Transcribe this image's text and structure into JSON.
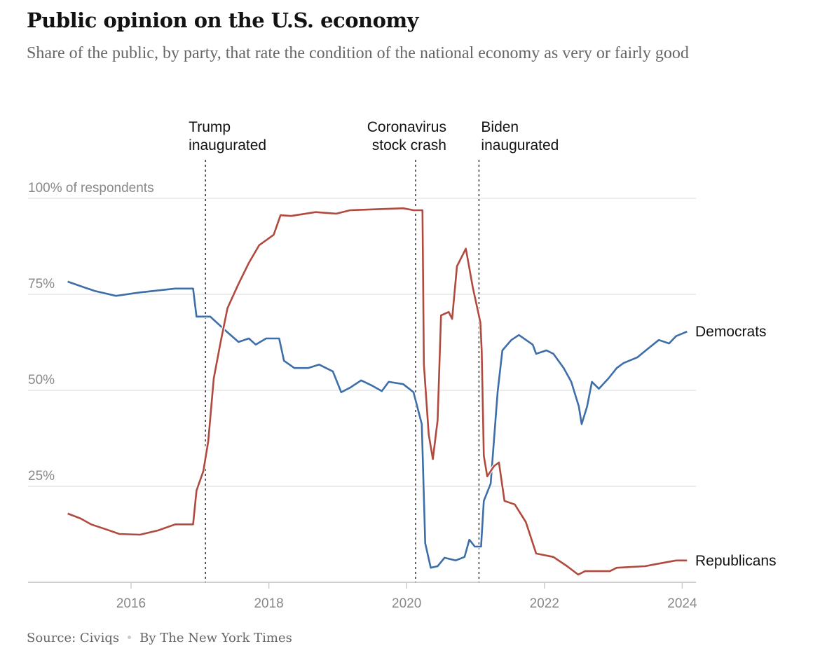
{
  "header": {
    "title": "Public opinion on the U.S. economy",
    "subtitle": "Share of the public, by party, that rate the condition of the national economy as very or fairly good"
  },
  "footer": {
    "source": "Source: Civiqs",
    "byline": "By The New York Times"
  },
  "chart_data": {
    "type": "line",
    "title": "Public opinion on the U.S. economy",
    "ylabel": "100% of respondents",
    "xlim": [
      2015,
      2024.2
    ],
    "ylim": [
      0,
      100
    ],
    "grid": true,
    "x_ticks": [
      {
        "value": 2016,
        "label": "2016"
      },
      {
        "value": 2018,
        "label": "2018"
      },
      {
        "value": 2020,
        "label": "2020"
      },
      {
        "value": 2022,
        "label": "2022"
      },
      {
        "value": 2024,
        "label": "2024"
      }
    ],
    "y_ticks": [
      {
        "value": 100,
        "label": "100% of respondents"
      },
      {
        "value": 75,
        "label": "75%"
      },
      {
        "value": 50,
        "label": "50%"
      },
      {
        "value": 25,
        "label": "25%"
      },
      {
        "value": 0,
        "label": ""
      }
    ],
    "events": [
      {
        "x": 2017.08,
        "label": [
          "Trump",
          "inaugurated"
        ]
      },
      {
        "x": 2020.13,
        "label": [
          "Coronavirus",
          "stock crash"
        ]
      },
      {
        "x": 2021.05,
        "label": [
          "Biden",
          "inaugurated"
        ]
      }
    ],
    "series": [
      {
        "name": "Democrats",
        "color": "#3d6ea8",
        "points": [
          [
            2015.08,
            78.3
          ],
          [
            2015.32,
            76.8
          ],
          [
            2015.47,
            75.9
          ],
          [
            2015.78,
            74.6
          ],
          [
            2016.13,
            75.5
          ],
          [
            2016.64,
            76.5
          ],
          [
            2016.9,
            76.5
          ],
          [
            2016.95,
            69.2
          ],
          [
            2017.15,
            69.2
          ],
          [
            2017.35,
            65.9
          ],
          [
            2017.56,
            62.6
          ],
          [
            2017.71,
            63.5
          ],
          [
            2017.81,
            61.9
          ],
          [
            2017.96,
            63.5
          ],
          [
            2018.15,
            63.5
          ],
          [
            2018.22,
            57.7
          ],
          [
            2018.37,
            55.8
          ],
          [
            2018.57,
            55.8
          ],
          [
            2018.73,
            56.7
          ],
          [
            2018.93,
            54.9
          ],
          [
            2019.05,
            49.5
          ],
          [
            2019.18,
            50.7
          ],
          [
            2019.34,
            52.6
          ],
          [
            2019.49,
            51.3
          ],
          [
            2019.64,
            49.8
          ],
          [
            2019.74,
            52.2
          ],
          [
            2019.95,
            51.6
          ],
          [
            2020.1,
            49.5
          ],
          [
            2020.22,
            41.2
          ],
          [
            2020.27,
            10.2
          ],
          [
            2020.35,
            3.8
          ],
          [
            2020.45,
            4.2
          ],
          [
            2020.55,
            6.4
          ],
          [
            2020.71,
            5.7
          ],
          [
            2020.84,
            6.6
          ],
          [
            2020.91,
            11.1
          ],
          [
            2020.99,
            9.3
          ],
          [
            2021.08,
            9.3
          ],
          [
            2021.12,
            21.2
          ],
          [
            2021.22,
            25.7
          ],
          [
            2021.32,
            49.5
          ],
          [
            2021.39,
            60.4
          ],
          [
            2021.52,
            63.1
          ],
          [
            2021.63,
            64.4
          ],
          [
            2021.83,
            61.9
          ],
          [
            2021.88,
            59.5
          ],
          [
            2022.03,
            60.4
          ],
          [
            2022.13,
            59.5
          ],
          [
            2022.28,
            55.8
          ],
          [
            2022.39,
            52.2
          ],
          [
            2022.5,
            45.8
          ],
          [
            2022.54,
            41.2
          ],
          [
            2022.62,
            45.8
          ],
          [
            2022.69,
            52.2
          ],
          [
            2022.79,
            50.4
          ],
          [
            2022.93,
            53.1
          ],
          [
            2023.05,
            55.8
          ],
          [
            2023.15,
            57.1
          ],
          [
            2023.35,
            58.6
          ],
          [
            2023.5,
            60.8
          ],
          [
            2023.66,
            63.1
          ],
          [
            2023.81,
            62.2
          ],
          [
            2023.91,
            64.1
          ],
          [
            2024.07,
            65.3
          ]
        ]
      },
      {
        "name": "Republicans",
        "color": "#b04a3f",
        "points": [
          [
            2015.08,
            17.9
          ],
          [
            2015.27,
            16.6
          ],
          [
            2015.42,
            15.1
          ],
          [
            2015.62,
            13.9
          ],
          [
            2015.83,
            12.6
          ],
          [
            2016.13,
            12.4
          ],
          [
            2016.39,
            13.5
          ],
          [
            2016.64,
            15.1
          ],
          [
            2016.9,
            15.1
          ],
          [
            2016.95,
            23.9
          ],
          [
            2017.05,
            29.0
          ],
          [
            2017.12,
            36.7
          ],
          [
            2017.2,
            53.1
          ],
          [
            2017.3,
            62.6
          ],
          [
            2017.4,
            71.4
          ],
          [
            2017.56,
            77.7
          ],
          [
            2017.71,
            83.2
          ],
          [
            2017.86,
            87.8
          ],
          [
            2018.07,
            90.5
          ],
          [
            2018.17,
            95.6
          ],
          [
            2018.32,
            95.4
          ],
          [
            2018.68,
            96.4
          ],
          [
            2018.98,
            96.0
          ],
          [
            2019.18,
            96.9
          ],
          [
            2019.95,
            97.4
          ],
          [
            2020.1,
            96.9
          ],
          [
            2020.23,
            96.9
          ],
          [
            2020.25,
            56.8
          ],
          [
            2020.32,
            38.5
          ],
          [
            2020.38,
            32.1
          ],
          [
            2020.45,
            42.2
          ],
          [
            2020.5,
            69.5
          ],
          [
            2020.61,
            70.4
          ],
          [
            2020.66,
            68.6
          ],
          [
            2020.73,
            82.3
          ],
          [
            2020.86,
            86.9
          ],
          [
            2020.96,
            76.8
          ],
          [
            2021.07,
            67.7
          ],
          [
            2021.09,
            60.4
          ],
          [
            2021.12,
            33.0
          ],
          [
            2021.17,
            27.6
          ],
          [
            2021.27,
            30.3
          ],
          [
            2021.34,
            31.2
          ],
          [
            2021.42,
            21.2
          ],
          [
            2021.57,
            20.3
          ],
          [
            2021.73,
            15.7
          ],
          [
            2021.88,
            7.5
          ],
          [
            2022.13,
            6.6
          ],
          [
            2022.33,
            4.2
          ],
          [
            2022.49,
            2.0
          ],
          [
            2022.59,
            2.9
          ],
          [
            2022.95,
            2.9
          ],
          [
            2023.05,
            3.8
          ],
          [
            2023.46,
            4.2
          ],
          [
            2023.61,
            4.7
          ],
          [
            2023.91,
            5.7
          ],
          [
            2024.07,
            5.7
          ]
        ]
      }
    ]
  }
}
